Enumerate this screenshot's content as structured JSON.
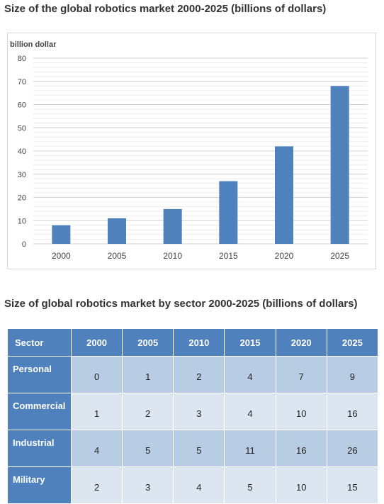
{
  "page": {
    "chart_title": "Size of the global robotics market 2000-2025 (billions of dollars)",
    "table_title": "Size of global robotics market by sector 2000-2025 (billions of dollars)"
  },
  "chart_data": [
    {
      "type": "bar",
      "title": "Size of the global robotics market 2000-2025 (billions of dollars)",
      "ylabel": "billion dollar",
      "xlabel": "",
      "categories": [
        "2000",
        "2005",
        "2010",
        "2015",
        "2020",
        "2025"
      ],
      "values": [
        8,
        11,
        15,
        27,
        42,
        68
      ],
      "ylim": [
        0,
        80
      ],
      "yticks": [
        0,
        10,
        20,
        30,
        40,
        50,
        60,
        70,
        80
      ],
      "grid": true,
      "color": "#4f81bd"
    },
    {
      "type": "table",
      "title": "Size of global robotics market by sector 2000-2025 (billions of dollars)",
      "columns": [
        "Sector",
        "2000",
        "2005",
        "2010",
        "2015",
        "2020",
        "2025"
      ],
      "rows": [
        {
          "label": "Personal",
          "values": [
            "0",
            "1",
            "2",
            "4",
            "7",
            "9"
          ]
        },
        {
          "label": "Commercial",
          "values": [
            "1",
            "2",
            "3",
            "4",
            "10",
            "16"
          ]
        },
        {
          "label": "Industrial",
          "values": [
            "4",
            "5",
            "5",
            "11",
            "16",
            "26"
          ]
        },
        {
          "label": "Military",
          "values": [
            "2",
            "3",
            "4",
            "5",
            "10",
            "15"
          ]
        }
      ]
    }
  ]
}
